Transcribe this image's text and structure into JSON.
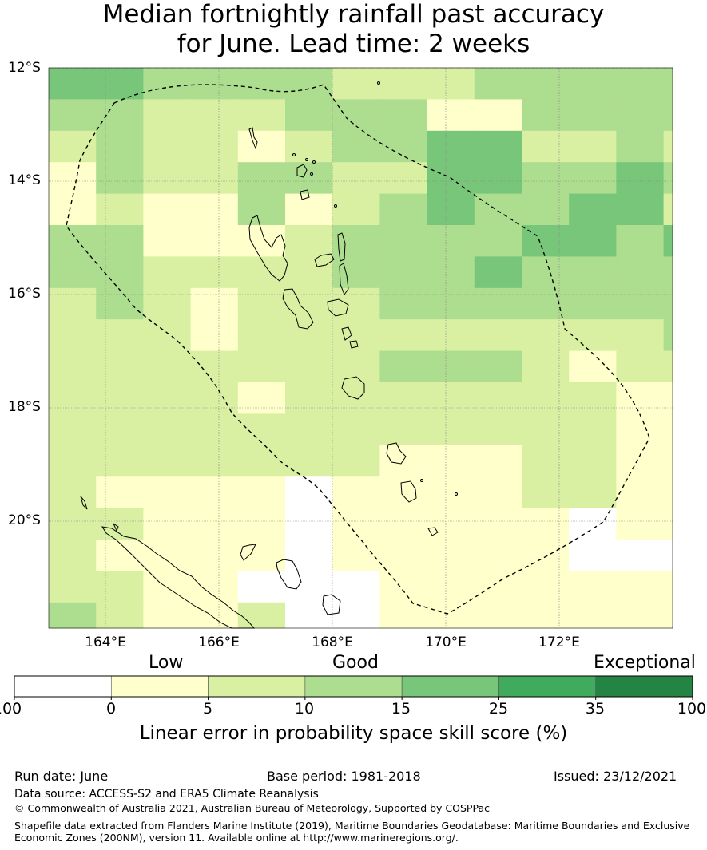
{
  "title": {
    "line1": "Median fortnightly rainfall past accuracy",
    "line2": "for June. Lead time: 2 weeks"
  },
  "map": {
    "lat_labels": [
      "12°S",
      "14°S",
      "16°S",
      "18°S",
      "20°S"
    ],
    "lon_labels": [
      "164°E",
      "166°E",
      "168°E",
      "170°E",
      "172°E"
    ],
    "region": "Vanuatu",
    "eez_outline": "dashed"
  },
  "colorbar": {
    "category_labels": {
      "low": "Low",
      "good": "Good",
      "exceptional": "Exceptional"
    },
    "tick_labels": [
      "-100",
      "0",
      "5",
      "10",
      "15",
      "25",
      "35",
      "100"
    ],
    "colors": [
      "#ffffff",
      "#ffffcc",
      "#d9f0a3",
      "#addd8e",
      "#78c679",
      "#41ab5d",
      "#238443"
    ],
    "title": "Linear error in probability space skill score (%)"
  },
  "footer": {
    "run_date": "Run date: June",
    "base_period": "Base period: 1981-2018",
    "issued": "Issued: 23/12/2021",
    "data_source": "Data source: ACCESS-S2 and ERA5 Climate Reanalysis",
    "copyright": "© Commonwealth of Australia 2021, Australian Bureau of Meteorology, Supported by COSPPac",
    "shapefile_line1": "Shapefile data extracted from Flanders Marine Institute (2019), Maritime Boundaries Geodatabase: Maritime Boundaries and Exclusive",
    "shapefile_line2": "Economic Zones (200NM), version 11. Available online at http://www.marineregions.org/."
  },
  "skill_grid": [
    "44333322233333",
    "33222333113333",
    "23221233442232",
    "13223322443343",
    "12113123433442",
    "33111233334434",
    "33222233343333",
    "23212223333333",
    "22212222222223",
    "22222223332122",
    "22221222222211",
    "22222222222211",
    "22222221112211",
    "21111011112211",
    "22111011111011",
    "21111011111000",
    "22110001111111",
    "32112001111111",
    "22211001110211",
    "11211110011111",
    "11111111111111"
  ]
}
